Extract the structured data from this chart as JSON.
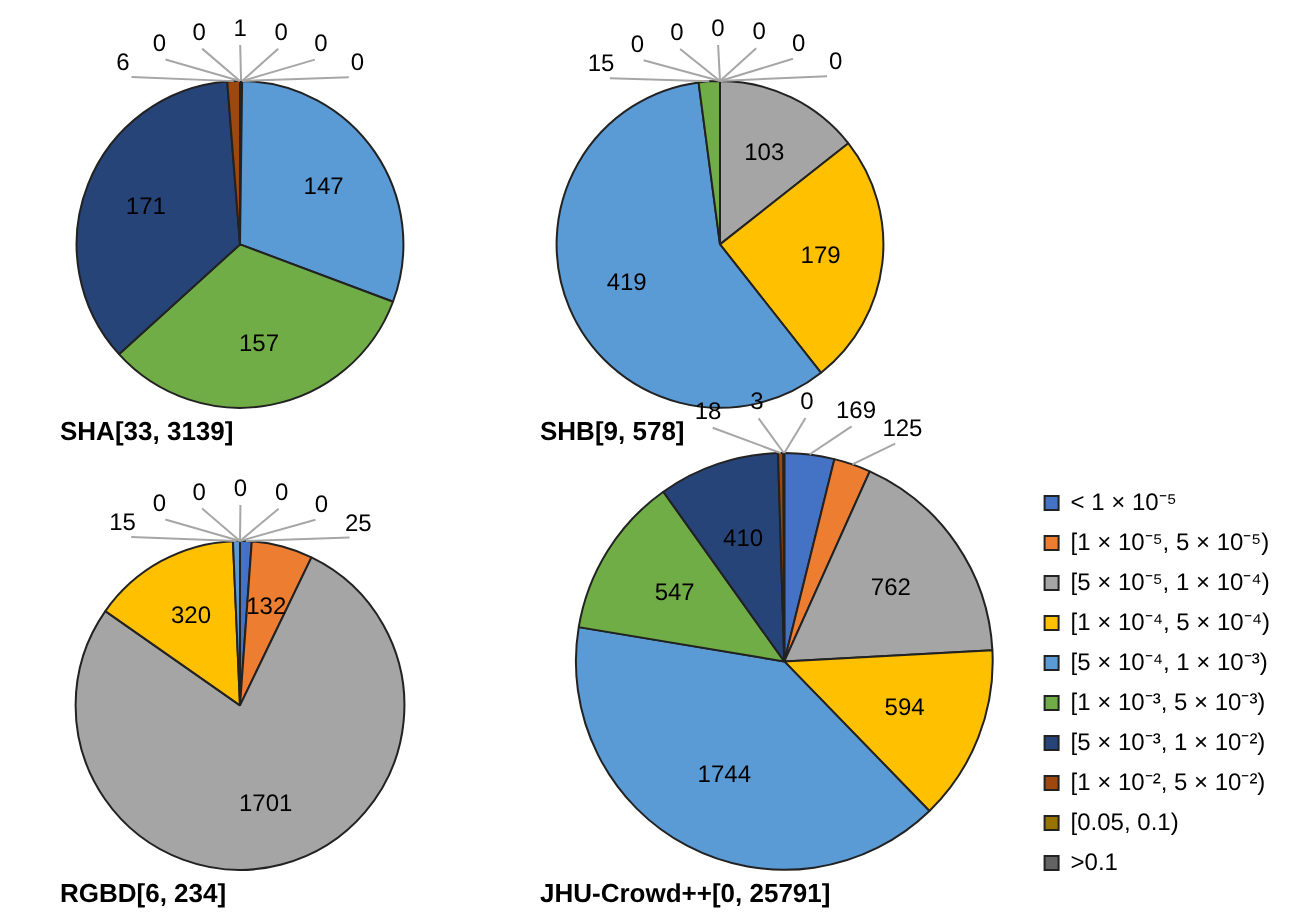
{
  "chart_data": [
    {
      "type": "pie",
      "title": "SHA[33, 3139]",
      "categories": [
        null,
        null,
        null,
        null,
        null,
        null,
        null,
        null,
        null,
        null
      ],
      "values": [
        1,
        0,
        0,
        0,
        147,
        157,
        171,
        6,
        0,
        0
      ],
      "value_labels": [
        "1",
        "0",
        "0",
        "0",
        "147",
        "157",
        "171",
        "6",
        "0",
        "0"
      ],
      "colors": [
        "#4472c4",
        "#ed7d31",
        "#a5a5a5",
        "#ffc000",
        "#5b9bd5",
        "#70ad47",
        "#264478",
        "#9e480e",
        "#997300",
        "#636363"
      ]
    },
    {
      "type": "pie",
      "title": "SHB[9, 578]",
      "categories": [
        null,
        null,
        null,
        null,
        null,
        null,
        null,
        null,
        null,
        null
      ],
      "values": [
        0,
        0,
        103,
        179,
        419,
        15,
        0,
        0,
        0,
        0
      ],
      "value_labels": [
        "0",
        "0",
        "103",
        "179",
        "419",
        "15",
        "0",
        "0",
        "0",
        "0"
      ],
      "colors": [
        "#4472c4",
        "#ed7d31",
        "#a5a5a5",
        "#ffc000",
        "#5b9bd5",
        "#70ad47",
        "#264478",
        "#9e480e",
        "#997300",
        "#636363"
      ]
    },
    {
      "type": "pie",
      "title": "RGBD[6, 234]",
      "categories": [
        null,
        null,
        null,
        null,
        null,
        null,
        null,
        null,
        null,
        null
      ],
      "values": [
        25,
        132,
        1701,
        320,
        15,
        0,
        0,
        0,
        0,
        0
      ],
      "value_labels": [
        "25",
        "132",
        "1701",
        "320",
        "15",
        "0",
        "0",
        "0",
        "0",
        "0"
      ],
      "colors": [
        "#4472c4",
        "#ed7d31",
        "#a5a5a5",
        "#ffc000",
        "#5b9bd5",
        "#70ad47",
        "#264478",
        "#9e480e",
        "#997300",
        "#636363"
      ]
    },
    {
      "type": "pie",
      "title": "JHU-Crowd++[0, 25791]",
      "categories": [
        "< 1 × 10⁻⁵",
        "[1 × 10⁻⁵, 5 × 10⁻⁵)",
        "[5 × 10⁻⁵, 1 × 10⁻⁴)",
        "[1 × 10⁻⁴, 5 × 10⁻⁴)",
        "[5 × 10⁻⁴, 1 × 10⁻³)",
        "[1 × 10⁻³, 5 × 10⁻³)",
        "[5 × 10⁻³, 1 × 10⁻²)",
        "[1 × 10⁻², 5 × 10⁻²)",
        "[0.05, 0.1)",
        ">0.1"
      ],
      "values": [
        169,
        125,
        762,
        594,
        1744,
        547,
        410,
        18,
        3,
        0
      ],
      "value_labels": [
        "169",
        "125",
        "762",
        "594",
        "1744",
        "547",
        "410",
        "18",
        "3",
        "0"
      ],
      "colors": [
        "#4472c4",
        "#ed7d31",
        "#a5a5a5",
        "#ffc000",
        "#5b9bd5",
        "#70ad47",
        "#264478",
        "#9e480e",
        "#997300",
        "#636363"
      ],
      "legend": "right"
    }
  ]
}
